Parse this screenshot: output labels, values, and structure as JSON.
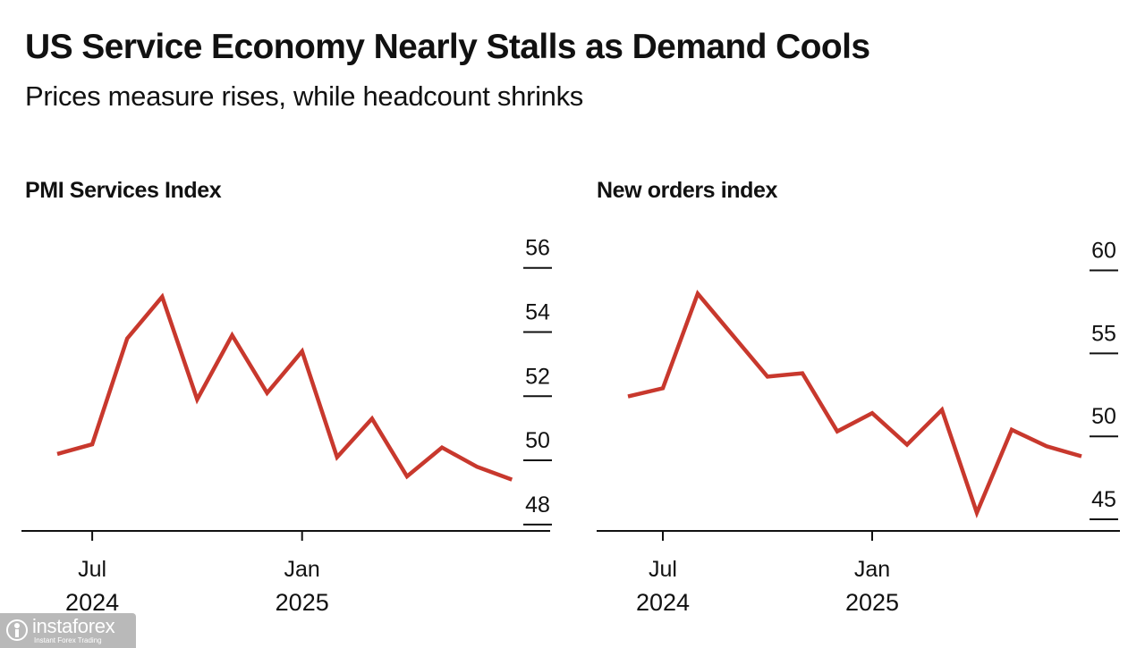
{
  "header": {
    "title": "US Service Economy Nearly Stalls as Demand Cools",
    "subtitle": "Prices measure rises, while headcount shrinks"
  },
  "chart_data": [
    {
      "type": "line",
      "title": "PMI Services Index",
      "x": [
        "2024-06",
        "2024-07",
        "2024-08",
        "2024-09",
        "2024-10",
        "2024-11",
        "2024-12",
        "2025-01",
        "2025-02",
        "2025-03",
        "2025-04",
        "2025-05",
        "2025-06",
        "2025-07"
      ],
      "series": [
        {
          "name": "PMI Services Index",
          "color": "#c8382d",
          "values": [
            50.2,
            50.5,
            53.8,
            55.1,
            51.9,
            53.9,
            52.1,
            53.4,
            50.1,
            51.3,
            49.5,
            50.4,
            49.8,
            49.4
          ]
        }
      ],
      "ylim": [
        47.8,
        56.8
      ],
      "yticks": [
        48,
        50,
        52,
        54,
        56
      ],
      "xticks": [
        {
          "label": "Jul",
          "year": "2024",
          "index": 1
        },
        {
          "label": "Jan",
          "year": "2025",
          "index": 7
        }
      ],
      "xlabel": "",
      "ylabel": ""
    },
    {
      "type": "line",
      "title": "New orders index",
      "x": [
        "2024-06",
        "2024-07",
        "2024-08",
        "2024-09",
        "2024-10",
        "2024-11",
        "2024-12",
        "2025-01",
        "2025-02",
        "2025-03",
        "2025-04",
        "2025-05",
        "2025-06",
        "2025-07"
      ],
      "series": [
        {
          "name": "New orders index",
          "color": "#c8382d",
          "values": [
            52.4,
            52.9,
            58.6,
            56.1,
            53.6,
            53.8,
            50.3,
            51.4,
            49.5,
            51.6,
            45.4,
            50.4,
            49.4,
            48.8
          ]
        }
      ],
      "ylim": [
        44.3,
        61.7
      ],
      "yticks": [
        45,
        50,
        55,
        60
      ],
      "xticks": [
        {
          "label": "Jul",
          "year": "2024",
          "index": 1
        },
        {
          "label": "Jan",
          "year": "2025",
          "index": 7
        }
      ],
      "xlabel": "",
      "ylabel": ""
    }
  ],
  "watermark": {
    "name": "instaforex",
    "tagline": "Instant Forex Trading",
    "color": "#b9b9b9"
  }
}
